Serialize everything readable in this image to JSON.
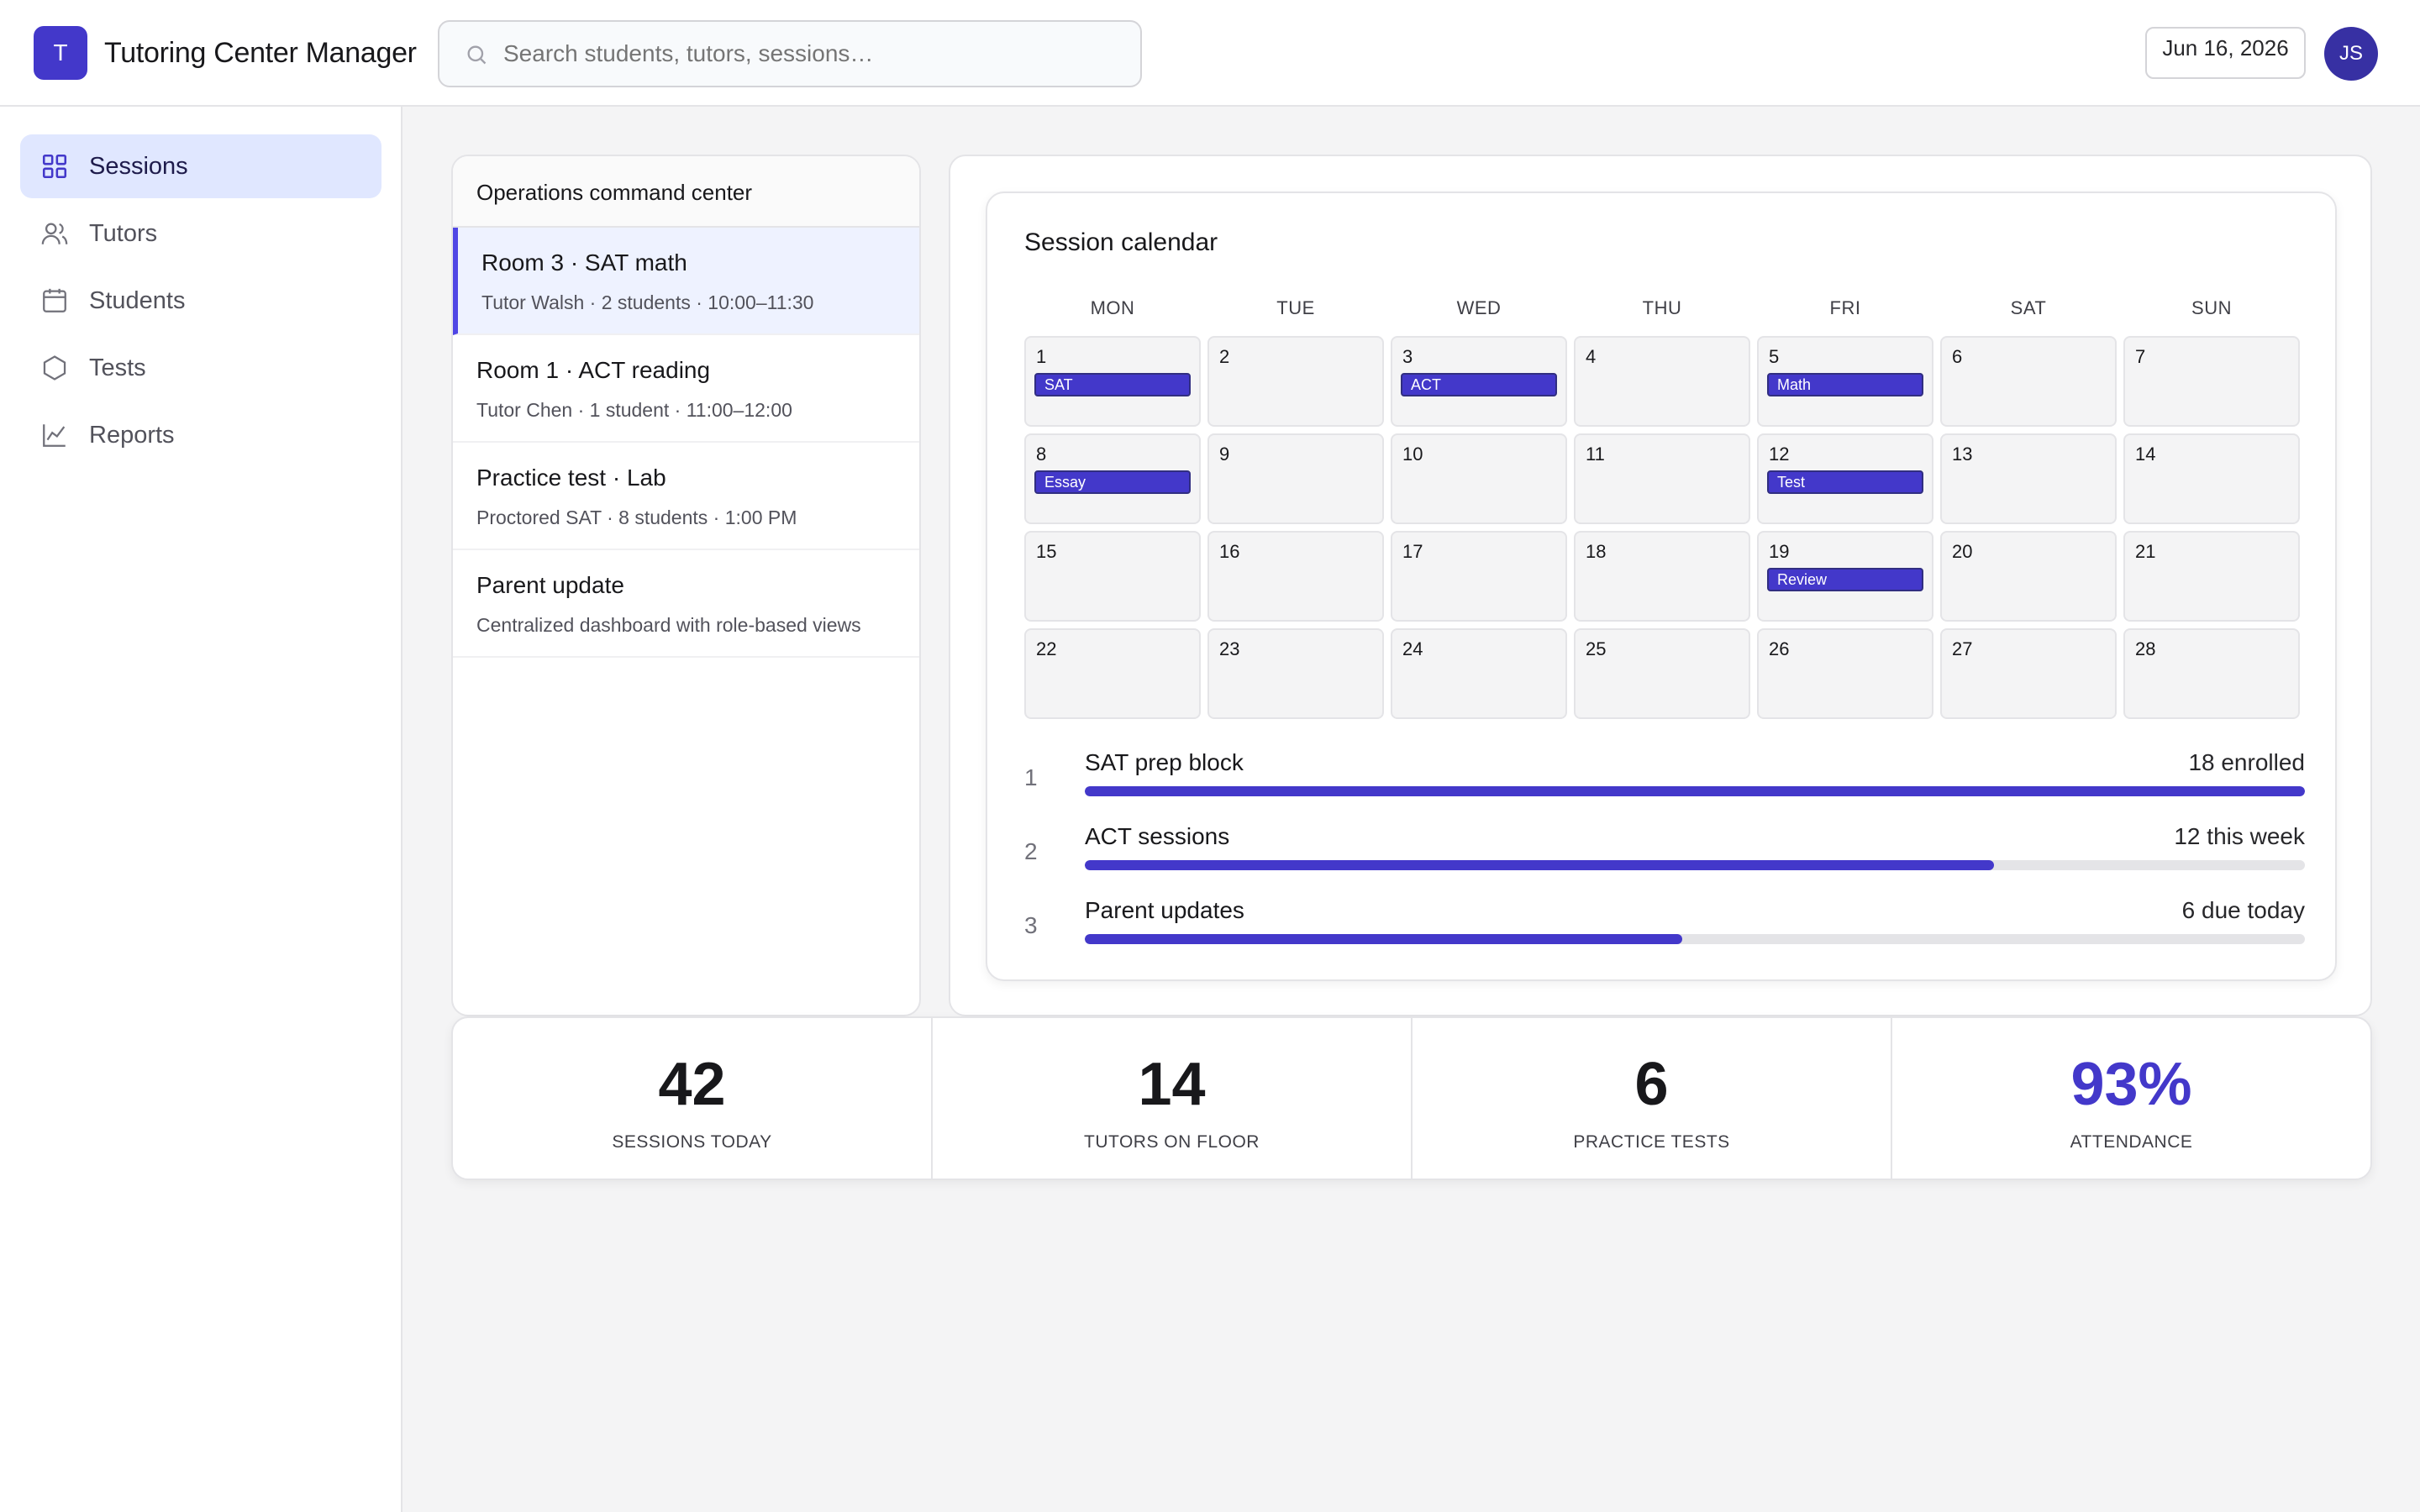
{
  "header": {
    "logo_letter": "T",
    "app_title": "Tutoring Center Manager",
    "search_placeholder": "Search students, tutors, sessions…",
    "date": "Jun 16, 2026",
    "avatar_initials": "JS"
  },
  "sidebar": {
    "items": [
      {
        "label": "Sessions",
        "icon": "grid-icon",
        "active": true
      },
      {
        "label": "Tutors",
        "icon": "users-icon",
        "active": false
      },
      {
        "label": "Students",
        "icon": "calendar-icon",
        "active": false
      },
      {
        "label": "Tests",
        "icon": "hexagon-icon",
        "active": false
      },
      {
        "label": "Reports",
        "icon": "line-chart-icon",
        "active": false
      }
    ]
  },
  "ops": {
    "title": "Operations command center",
    "items": [
      {
        "title": "Room 3 · SAT math",
        "sub": "Tutor Walsh · 2 students · 10:00–11:30",
        "active": true
      },
      {
        "title": "Room 1 · ACT reading",
        "sub": "Tutor Chen · 1 student · 11:00–12:00",
        "active": false
      },
      {
        "title": "Practice test · Lab",
        "sub": "Proctored SAT · 8 students · 1:00 PM",
        "active": false
      },
      {
        "title": "Parent update",
        "sub": "Centralized dashboard with role-based views",
        "active": false
      }
    ]
  },
  "calendar": {
    "title": "Session calendar",
    "weekdays": [
      "MON",
      "TUE",
      "WED",
      "THU",
      "FRI",
      "SAT",
      "SUN"
    ],
    "days": [
      {
        "n": "1",
        "tag": "SAT"
      },
      {
        "n": "2",
        "tag": ""
      },
      {
        "n": "3",
        "tag": "ACT"
      },
      {
        "n": "4",
        "tag": ""
      },
      {
        "n": "5",
        "tag": "Math"
      },
      {
        "n": "6",
        "tag": ""
      },
      {
        "n": "7",
        "tag": ""
      },
      {
        "n": "8",
        "tag": "Essay"
      },
      {
        "n": "9",
        "tag": ""
      },
      {
        "n": "10",
        "tag": ""
      },
      {
        "n": "11",
        "tag": ""
      },
      {
        "n": "12",
        "tag": "Test"
      },
      {
        "n": "13",
        "tag": ""
      },
      {
        "n": "14",
        "tag": ""
      },
      {
        "n": "15",
        "tag": ""
      },
      {
        "n": "16",
        "tag": ""
      },
      {
        "n": "17",
        "tag": ""
      },
      {
        "n": "18",
        "tag": ""
      },
      {
        "n": "19",
        "tag": "Review"
      },
      {
        "n": "20",
        "tag": ""
      },
      {
        "n": "21",
        "tag": ""
      },
      {
        "n": "22",
        "tag": ""
      },
      {
        "n": "23",
        "tag": ""
      },
      {
        "n": "24",
        "tag": ""
      },
      {
        "n": "25",
        "tag": ""
      },
      {
        "n": "26",
        "tag": ""
      },
      {
        "n": "27",
        "tag": ""
      },
      {
        "n": "28",
        "tag": ""
      }
    ],
    "progress": [
      {
        "index": "1",
        "label": "SAT prep block",
        "value": "18 enrolled",
        "fill": 1.0
      },
      {
        "index": "2",
        "label": "ACT sessions",
        "value": "12 this week",
        "fill": 0.745
      },
      {
        "index": "3",
        "label": "Parent updates",
        "value": "6 due today",
        "fill": 0.49
      }
    ]
  },
  "stats": [
    {
      "value": "42",
      "label": "SESSIONS TODAY",
      "accent": false
    },
    {
      "value": "14",
      "label": "TUTORS ON FLOOR",
      "accent": false
    },
    {
      "value": "6",
      "label": "PRACTICE TESTS",
      "accent": false
    },
    {
      "value": "93%",
      "label": "ATTENDANCE",
      "accent": true
    }
  ],
  "colors": {
    "accent": "#4338ca",
    "active_nav_bg": "#e0e7ff",
    "page_bg": "#f4f4f5"
  }
}
